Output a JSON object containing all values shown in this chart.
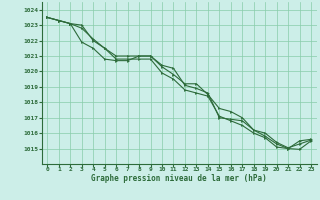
{
  "title": "Graphe pression niveau de la mer (hPa)",
  "background_color": "#cceee8",
  "grid_color": "#88ccaa",
  "line_color": "#2d6b3a",
  "marker_color": "#2d6b3a",
  "xlim": [
    -0.5,
    23.5
  ],
  "ylim": [
    1014.0,
    1024.5
  ],
  "yticks": [
    1015,
    1016,
    1017,
    1018,
    1019,
    1020,
    1021,
    1022,
    1023,
    1024
  ],
  "xticks": [
    0,
    1,
    2,
    3,
    4,
    5,
    6,
    7,
    8,
    9,
    10,
    11,
    12,
    13,
    14,
    15,
    16,
    17,
    18,
    19,
    20,
    21,
    22,
    23
  ],
  "series1": [
    1023.5,
    1023.3,
    1023.1,
    1022.8,
    1022.1,
    1021.5,
    1021.0,
    1021.0,
    1021.0,
    1021.0,
    1020.4,
    1020.2,
    1019.1,
    1018.9,
    1018.6,
    1017.0,
    1016.9,
    1016.8,
    1016.2,
    1016.0,
    1015.4,
    1015.05,
    1015.3,
    1015.55
  ],
  "series2": [
    1023.5,
    1023.3,
    1023.1,
    1023.0,
    1022.0,
    1021.5,
    1020.8,
    1020.8,
    1020.8,
    1020.8,
    1019.9,
    1019.5,
    1018.8,
    1018.6,
    1018.4,
    1017.1,
    1016.8,
    1016.5,
    1016.0,
    1015.7,
    1015.1,
    1015.0,
    1015.5,
    1015.6
  ],
  "series3": [
    1023.5,
    1023.3,
    1023.1,
    1021.9,
    1021.5,
    1020.8,
    1020.7,
    1020.7,
    1021.0,
    1021.0,
    1020.3,
    1019.8,
    1019.2,
    1019.2,
    1018.5,
    1017.6,
    1017.4,
    1017.0,
    1016.2,
    1015.8,
    1015.3,
    1015.0,
    1014.95,
    1015.5
  ],
  "marker_x1": [
    0,
    3,
    4,
    5,
    6,
    7,
    8,
    9,
    10,
    11,
    12,
    13,
    14,
    15,
    16,
    17,
    18,
    19,
    20,
    21,
    22,
    23
  ],
  "marker_x2": [
    0,
    3,
    4,
    5,
    6,
    7,
    8,
    9,
    10,
    11,
    12,
    13,
    14,
    15,
    16,
    17,
    18,
    19,
    20,
    21,
    22,
    23
  ],
  "marker_x3": [
    0,
    3,
    4,
    5,
    6,
    7,
    8,
    9,
    10,
    11,
    12,
    13,
    14,
    15,
    16,
    17,
    18,
    19,
    20,
    21,
    22,
    23
  ]
}
